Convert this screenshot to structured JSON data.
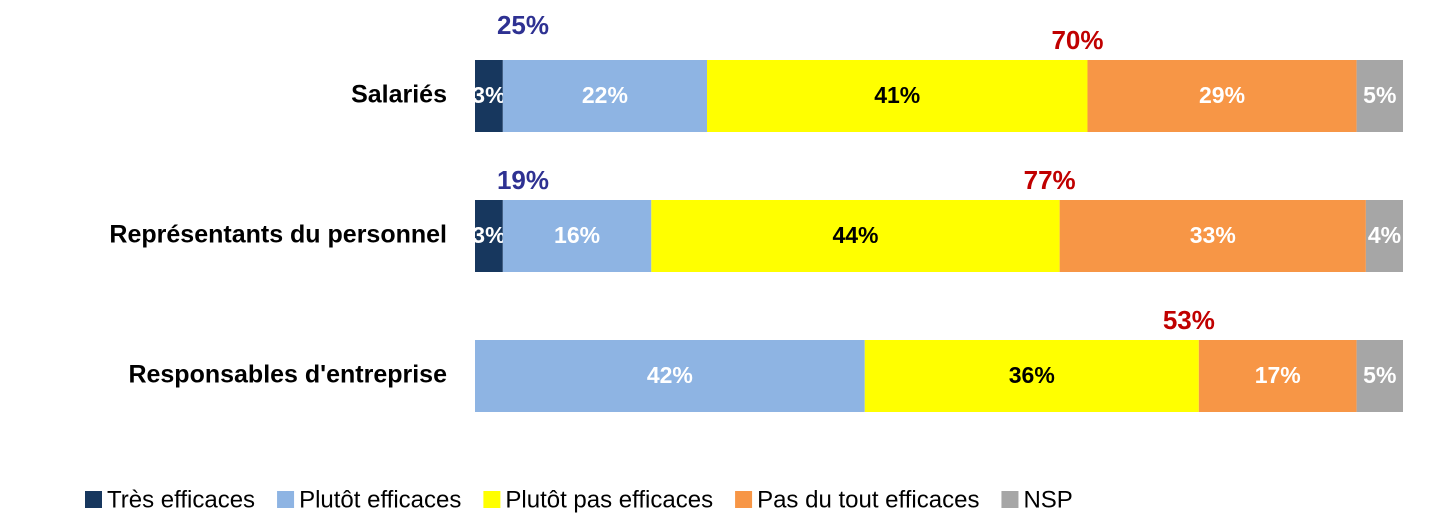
{
  "chart_data": {
    "type": "stacked-bar-horizontal",
    "categories": [
      "Salariés",
      "Représentants du personnel",
      "Responsables d'entreprise"
    ],
    "xlim": [
      0,
      100
    ],
    "legend": "bottom",
    "series": [
      {
        "name": "Très efficaces",
        "color": "#17375e",
        "label_color": "#ffffff",
        "values": [
          3,
          3,
          null
        ],
        "value_labels": [
          "3%",
          "3%",
          null
        ]
      },
      {
        "name": "Plutôt efficaces",
        "color": "#8eb4e3",
        "label_color": "#ffffff",
        "values": [
          22,
          16,
          42
        ],
        "value_labels": [
          "22%",
          "16%",
          "42%"
        ]
      },
      {
        "name": "Plutôt pas efficaces",
        "color": "#ffff00",
        "label_color": "#000000",
        "values": [
          41,
          44,
          36
        ],
        "value_labels": [
          "41%",
          "44%",
          "36%"
        ]
      },
      {
        "name": "Pas du tout efficaces",
        "color": "#f79646",
        "label_color": "#ffffff",
        "values": [
          29,
          33,
          17
        ],
        "value_labels": [
          "29%",
          "33%",
          "17%"
        ]
      },
      {
        "name": "NSP",
        "color": "#a6a6a6",
        "label_color": "#ffffff",
        "values": [
          5,
          4,
          5
        ],
        "value_labels": [
          "5%",
          "4%",
          "5%"
        ]
      }
    ],
    "totals": [
      {
        "color": "#2e3192",
        "values": [
          25,
          19,
          null
        ],
        "value_labels": [
          "25%",
          "19%",
          null
        ]
      },
      {
        "color": "#c00000",
        "values": [
          70,
          77,
          53
        ],
        "value_labels": [
          "70%",
          "77%",
          "53%"
        ]
      }
    ]
  }
}
